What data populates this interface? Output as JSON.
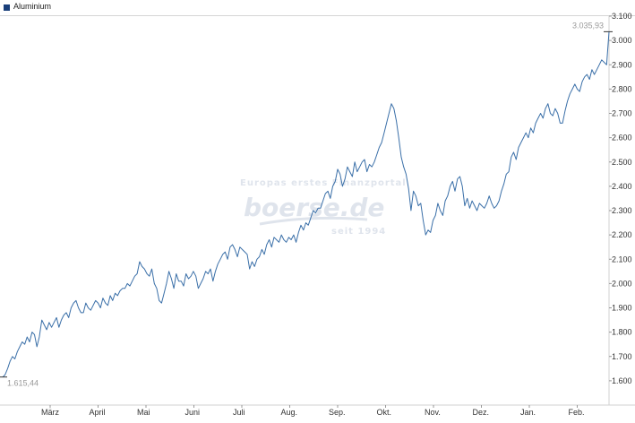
{
  "legend": {
    "label": "Aluminium",
    "color": "#1a3f7a"
  },
  "watermark": {
    "tagline": "Europas erstes Finanzportal",
    "brand": "boerse.de",
    "since": "seit 1994"
  },
  "chart_data": {
    "type": "line",
    "series": [
      {
        "name": "Aluminium",
        "color": "#3a6fa8"
      }
    ],
    "ylim": [
      1500,
      3100
    ],
    "yticks": [
      1600,
      1700,
      1800,
      1900,
      2000,
      2100,
      2200,
      2300,
      2400,
      2500,
      2600,
      2700,
      2800,
      2900,
      3000,
      3100
    ],
    "ytick_labels": [
      "1.600",
      "1.700",
      "1.800",
      "1.900",
      "2.000",
      "2.100",
      "2.200",
      "2.300",
      "2.400",
      "2.500",
      "2.600",
      "2.700",
      "2.800",
      "2.900",
      "3.000",
      "3.100"
    ],
    "xtick_labels": [
      "März",
      "April",
      "Mai",
      "Juni",
      "Juli",
      "Aug.",
      "Sep.",
      "Okt.",
      "Nov.",
      "Dez.",
      "Jan.",
      "Feb."
    ],
    "start_label": "1.615,44",
    "end_label": "3.035,93",
    "start_value": 1615.44,
    "end_value": 3035.93,
    "values": [
      1615,
      1625,
      1650,
      1680,
      1700,
      1690,
      1720,
      1740,
      1760,
      1750,
      1780,
      1760,
      1800,
      1790,
      1740,
      1780,
      1850,
      1830,
      1810,
      1840,
      1820,
      1840,
      1860,
      1820,
      1850,
      1870,
      1880,
      1860,
      1900,
      1920,
      1930,
      1900,
      1880,
      1880,
      1920,
      1900,
      1890,
      1910,
      1930,
      1920,
      1900,
      1940,
      1920,
      1910,
      1950,
      1930,
      1960,
      1950,
      1970,
      1980,
      1980,
      2000,
      1990,
      2010,
      2030,
      2040,
      2090,
      2070,
      2060,
      2040,
      2030,
      2060,
      2000,
      1980,
      1930,
      1920,
      1960,
      2000,
      2050,
      2020,
      1980,
      2040,
      2010,
      2010,
      1990,
      2040,
      2020,
      2030,
      2050,
      2030,
      1980,
      2000,
      2020,
      2050,
      2040,
      2060,
      2010,
      2050,
      2080,
      2100,
      2120,
      2130,
      2100,
      2150,
      2160,
      2140,
      2110,
      2150,
      2140,
      2130,
      2120,
      2060,
      2090,
      2070,
      2100,
      2110,
      2140,
      2120,
      2160,
      2180,
      2150,
      2190,
      2180,
      2170,
      2200,
      2180,
      2170,
      2190,
      2180,
      2200,
      2170,
      2210,
      2240,
      2220,
      2250,
      2240,
      2270,
      2300,
      2290,
      2310,
      2310,
      2340,
      2370,
      2380,
      2350,
      2400,
      2420,
      2470,
      2450,
      2400,
      2430,
      2480,
      2460,
      2440,
      2500,
      2460,
      2480,
      2500,
      2510,
      2460,
      2490,
      2480,
      2500,
      2530,
      2560,
      2580,
      2620,
      2660,
      2700,
      2740,
      2720,
      2670,
      2600,
      2520,
      2480,
      2450,
      2390,
      2300,
      2380,
      2360,
      2320,
      2330,
      2260,
      2200,
      2220,
      2210,
      2260,
      2280,
      2330,
      2300,
      2280,
      2340,
      2360,
      2400,
      2420,
      2380,
      2430,
      2440,
      2400,
      2320,
      2350,
      2310,
      2340,
      2320,
      2300,
      2330,
      2320,
      2310,
      2330,
      2360,
      2330,
      2310,
      2320,
      2340,
      2380,
      2410,
      2450,
      2460,
      2520,
      2540,
      2510,
      2560,
      2580,
      2600,
      2620,
      2600,
      2640,
      2620,
      2660,
      2680,
      2700,
      2680,
      2720,
      2740,
      2700,
      2690,
      2720,
      2700,
      2660,
      2660,
      2710,
      2750,
      2780,
      2800,
      2820,
      2800,
      2790,
      2830,
      2850,
      2860,
      2840,
      2880,
      2860,
      2880,
      2900,
      2920,
      2910,
      2900,
      3035.93
    ],
    "grid": false,
    "legend": "top-left"
  }
}
